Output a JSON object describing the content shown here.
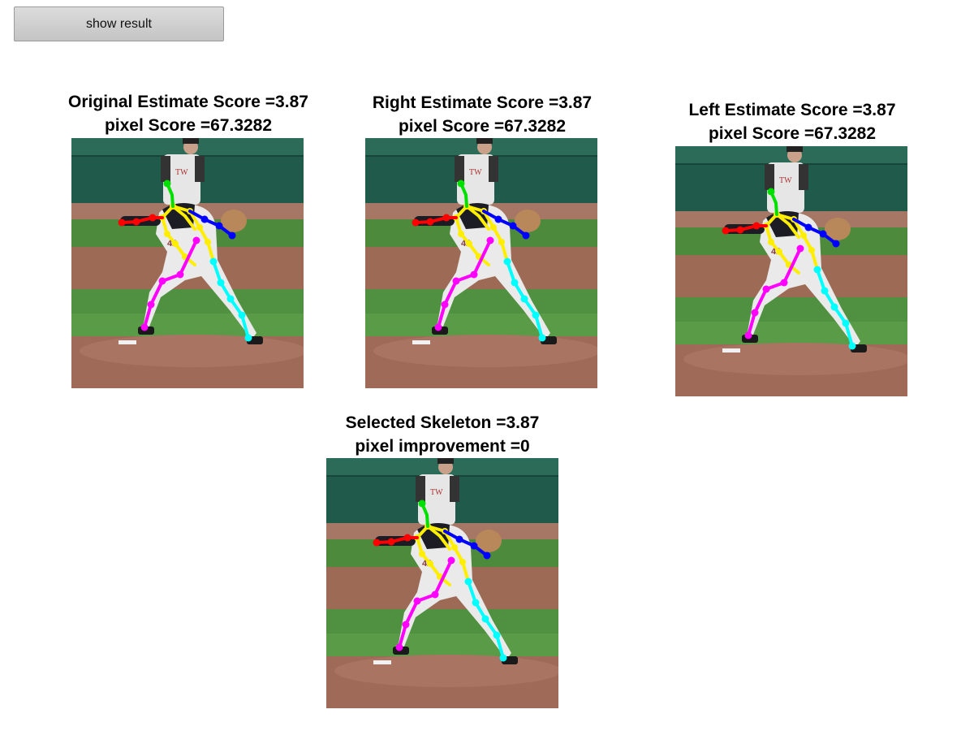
{
  "toolbar": {
    "show_result_label": "show result"
  },
  "panels": {
    "original": {
      "title_line1": "Original Estimate Score =3.87",
      "title_line2": "pixel Score =67.3282"
    },
    "right": {
      "title_line1": "Right Estimate Score =3.87",
      "title_line2": "pixel Score =67.3282"
    },
    "left": {
      "title_line1": "Left Estimate Score =3.87",
      "title_line2": "pixel Score =67.3282"
    },
    "selected": {
      "title_line1": "Selected Skeleton =3.87",
      "title_line2": "pixel improvement =0"
    }
  },
  "skeleton_colors": {
    "head": "#00e000",
    "torso": "#ffee00",
    "right_arm": "#ff0000",
    "left_arm": "#0000ff",
    "right_leg": "#ff00ff",
    "left_leg": "#00ffff"
  }
}
